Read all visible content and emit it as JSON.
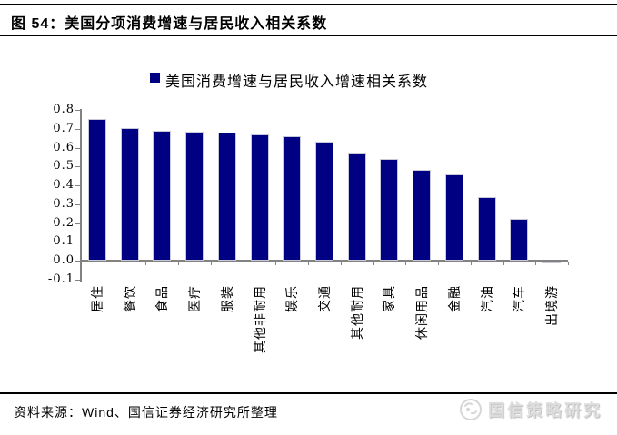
{
  "header": {
    "title": "图 54：美国分项消费增速与居民收入相关系数"
  },
  "legend": {
    "label": "美国消费增速与居民收入增速相关系数"
  },
  "chart_data": {
    "type": "bar",
    "title": "美国分项消费增速与居民收入相关系数",
    "legend": "美国消费增速与居民收入增速相关系数",
    "legend_position": "top",
    "grid": false,
    "categories": [
      "居住",
      "餐饮",
      "食品",
      "医疗",
      "服装",
      "其他非耐用",
      "娱乐",
      "交通",
      "其他耐用",
      "家具",
      "休闲用品",
      "金融",
      "汽油",
      "汽车",
      "出境游"
    ],
    "values": [
      0.75,
      0.705,
      0.69,
      0.685,
      0.68,
      0.67,
      0.66,
      0.63,
      0.57,
      0.54,
      0.48,
      0.46,
      0.335,
      0.22,
      -0.01
    ],
    "xlabel": "",
    "ylabel": "",
    "ylim": [
      -0.1,
      0.8
    ],
    "ytick_labels": [
      "0.8",
      "0.7",
      "0.6",
      "0.5",
      "0.4",
      "0.3",
      "0.2",
      "0.1",
      "0.0",
      "-0.1"
    ],
    "bar_color": "#000082",
    "bar_border_color": "#c8c8d8",
    "axis_color": "#828282"
  },
  "footer": {
    "source": "资料来源：Wind、国信证券经济研究所整理",
    "watermark": "国信策略研究"
  }
}
